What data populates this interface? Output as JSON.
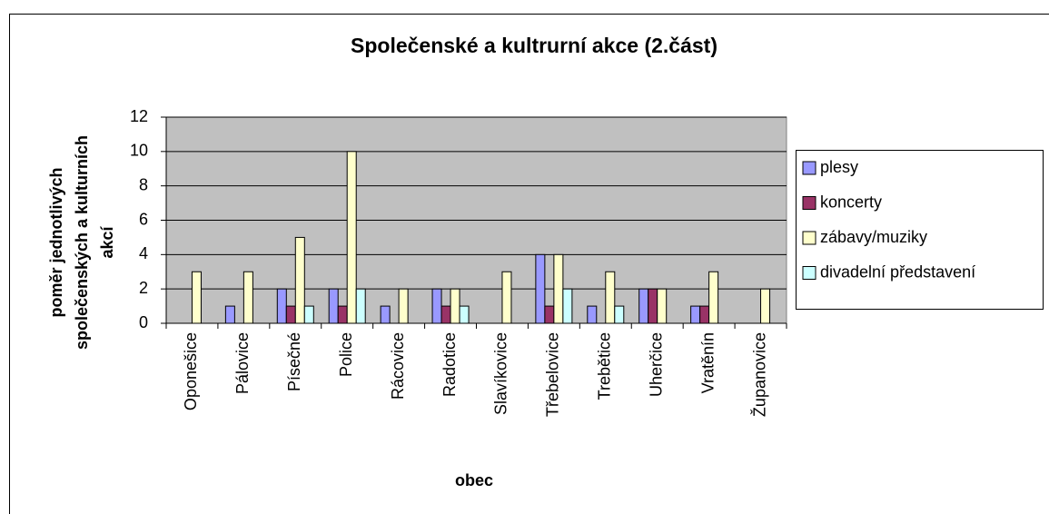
{
  "chart_data": {
    "type": "bar",
    "title": "Společenské a kultrurní akce (2.část)",
    "x_label": "obec",
    "y_label": "poměr jednotlivých společenských a kulturních akcí",
    "categories": [
      "Oponešice",
      "Pálovice",
      "Písečné",
      "Police",
      "Rácovice",
      "Radotice",
      "Slavíkovice",
      "Třebelovice",
      "Trebětice",
      "Uherčice",
      "Vratěnín",
      "Županovice"
    ],
    "series": [
      {
        "name": "plesy",
        "color": "#9999ff",
        "values": [
          0,
          1,
          2,
          2,
          1,
          2,
          0,
          4,
          1,
          2,
          1,
          0
        ]
      },
      {
        "name": "koncerty",
        "color": "#993366",
        "values": [
          0,
          0,
          1,
          1,
          0,
          1,
          0,
          1,
          0,
          2,
          1,
          0
        ]
      },
      {
        "name": "zábavy/muziky",
        "color": "#ffffcc",
        "values": [
          3,
          3,
          5,
          10,
          2,
          2,
          3,
          4,
          3,
          2,
          3,
          2
        ]
      },
      {
        "name": "divadelní představení",
        "color": "#ccffff",
        "values": [
          0,
          0,
          1,
          2,
          0,
          1,
          0,
          2,
          1,
          0,
          0,
          0
        ]
      }
    ],
    "ylim": [
      0,
      12
    ],
    "yticks": [
      0,
      2,
      4,
      6,
      8,
      10,
      12
    ],
    "grid": true,
    "legend": "right",
    "plot_background": "#c0c0c0"
  }
}
